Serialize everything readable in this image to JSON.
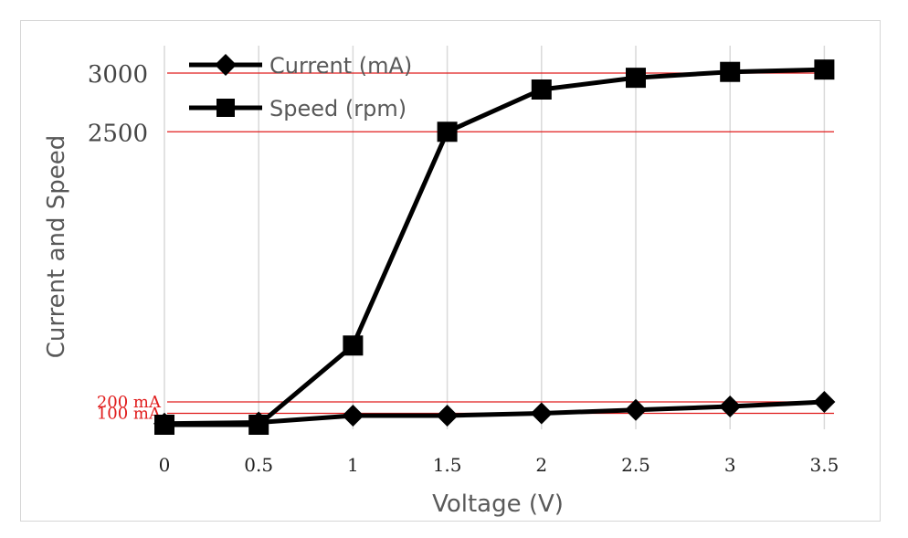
{
  "chart_data": {
    "type": "line",
    "xlabel": "Voltage (V)",
    "ylabel": "Current and Speed",
    "x": [
      0,
      0.5,
      1,
      1.5,
      2,
      2.5,
      3,
      3.5
    ],
    "x_tick_labels": [
      "0",
      "0.5",
      "1",
      "1.5",
      "2",
      "2.5",
      "3",
      "3.5"
    ],
    "reference_lines": [
      {
        "value": 3000,
        "label": "3000"
      },
      {
        "value": 2500,
        "label": "2500"
      },
      {
        "value": 200,
        "label": "200 mA"
      },
      {
        "value": 100,
        "label": "100 mA"
      }
    ],
    "series": [
      {
        "name": "Current (mA)",
        "marker": "diamond",
        "values": [
          10,
          20,
          80,
          80,
          100,
          130,
          160,
          200
        ]
      },
      {
        "name": "Speed (rpm)",
        "marker": "square",
        "values": [
          0,
          0,
          680,
          2500,
          2860,
          2960,
          3010,
          3030
        ]
      }
    ],
    "grid": "vertical",
    "legend_position": "top-left",
    "colors": {
      "series": "#000000",
      "reference": "#e01c1c",
      "grid": "#d9d9d9"
    }
  }
}
